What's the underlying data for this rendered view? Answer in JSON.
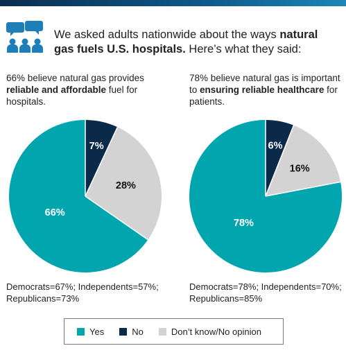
{
  "header": {
    "intro_plain": "We asked adults nationwide about the ways ",
    "intro_bold": "natural gas fuels U.S. hospitals.",
    "intro_tail": " Here’s what they said:",
    "icon": "people-discussion-icon"
  },
  "colors": {
    "yes": "#00a5ae",
    "no": "#0b2a4a",
    "dontknow": "#d3d3d3",
    "topbar": "#0b2d4f",
    "icon": "#1d7fb8"
  },
  "panels": [
    {
      "desc_plain": "66% believe natural gas provides ",
      "desc_bold": "reliable and affordable",
      "desc_tail": " fuel for hospitals.",
      "party": "Democrats=67%; Independents=57%; Republicans=73%"
    },
    {
      "desc_plain": "78% believe natural gas is important to ",
      "desc_bold": "ensuring reliable healthcare",
      "desc_tail": " for patients.",
      "party": "Democrats=78%; Independents=70%; Republicans=85%"
    }
  ],
  "legend": {
    "yes": "Yes",
    "no": "No",
    "dontknow": "Don’t know/No opinion"
  },
  "chart_data": [
    {
      "type": "pie",
      "categories": [
        "Yes",
        "No",
        "Don’t know/No opinion"
      ],
      "values": [
        66,
        7,
        28
      ],
      "labels": [
        "66%",
        "7%",
        "28%"
      ]
    },
    {
      "type": "pie",
      "categories": [
        "Yes",
        "No",
        "Don’t know/No opinion"
      ],
      "values": [
        78,
        6,
        16
      ],
      "labels": [
        "78%",
        "6%",
        "16%"
      ]
    }
  ]
}
